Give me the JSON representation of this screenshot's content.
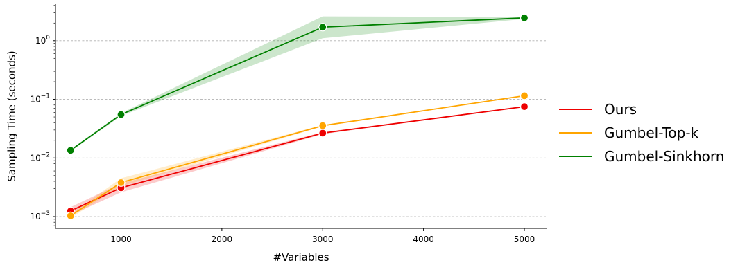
{
  "chart_data": {
    "type": "line",
    "xlabel": "#Variables",
    "ylabel": "Sampling Time (seconds)",
    "xscale": "linear",
    "yscale": "log",
    "xlim": [
      350,
      5220
    ],
    "ylim": [
      0.00063,
      4.2
    ],
    "xticks": [
      1000,
      2000,
      3000,
      4000,
      5000
    ],
    "xtick_labels": [
      "1000",
      "2000",
      "3000",
      "4000",
      "5000"
    ],
    "yticks": [
      0.001,
      0.01,
      0.1,
      1
    ],
    "ytick_labels": [
      {
        "base": "10",
        "exp": "−3"
      },
      {
        "base": "10",
        "exp": "−2"
      },
      {
        "base": "10",
        "exp": "−1"
      },
      {
        "base": "10",
        "exp": "0"
      }
    ],
    "grid": "horizontal dashed at major y ticks",
    "legend_position": "right, outside plot",
    "x": [
      500,
      1000,
      3000,
      5000
    ],
    "series": [
      {
        "name": "Ours",
        "color": "#ee0000",
        "values": [
          0.00125,
          0.0031,
          0.0265,
          0.075
        ],
        "band_low": [
          0.00105,
          0.0026,
          0.0255,
          0.074
        ],
        "band_high": [
          0.00145,
          0.0037,
          0.0275,
          0.076
        ]
      },
      {
        "name": "Gumbel-Top-k",
        "color": "#ffa500",
        "values": [
          0.00103,
          0.0038,
          0.0355,
          0.115
        ],
        "band_low": [
          0.00095,
          0.0033,
          0.0345,
          0.113
        ],
        "band_high": [
          0.00111,
          0.0045,
          0.0365,
          0.117
        ]
      },
      {
        "name": "Gumbel-Sinkhorn",
        "color": "#008000",
        "values": [
          0.0135,
          0.055,
          1.7,
          2.45
        ],
        "band_low": [
          0.013,
          0.052,
          1.1,
          2.35
        ],
        "band_high": [
          0.014,
          0.058,
          2.6,
          2.55
        ]
      }
    ]
  }
}
